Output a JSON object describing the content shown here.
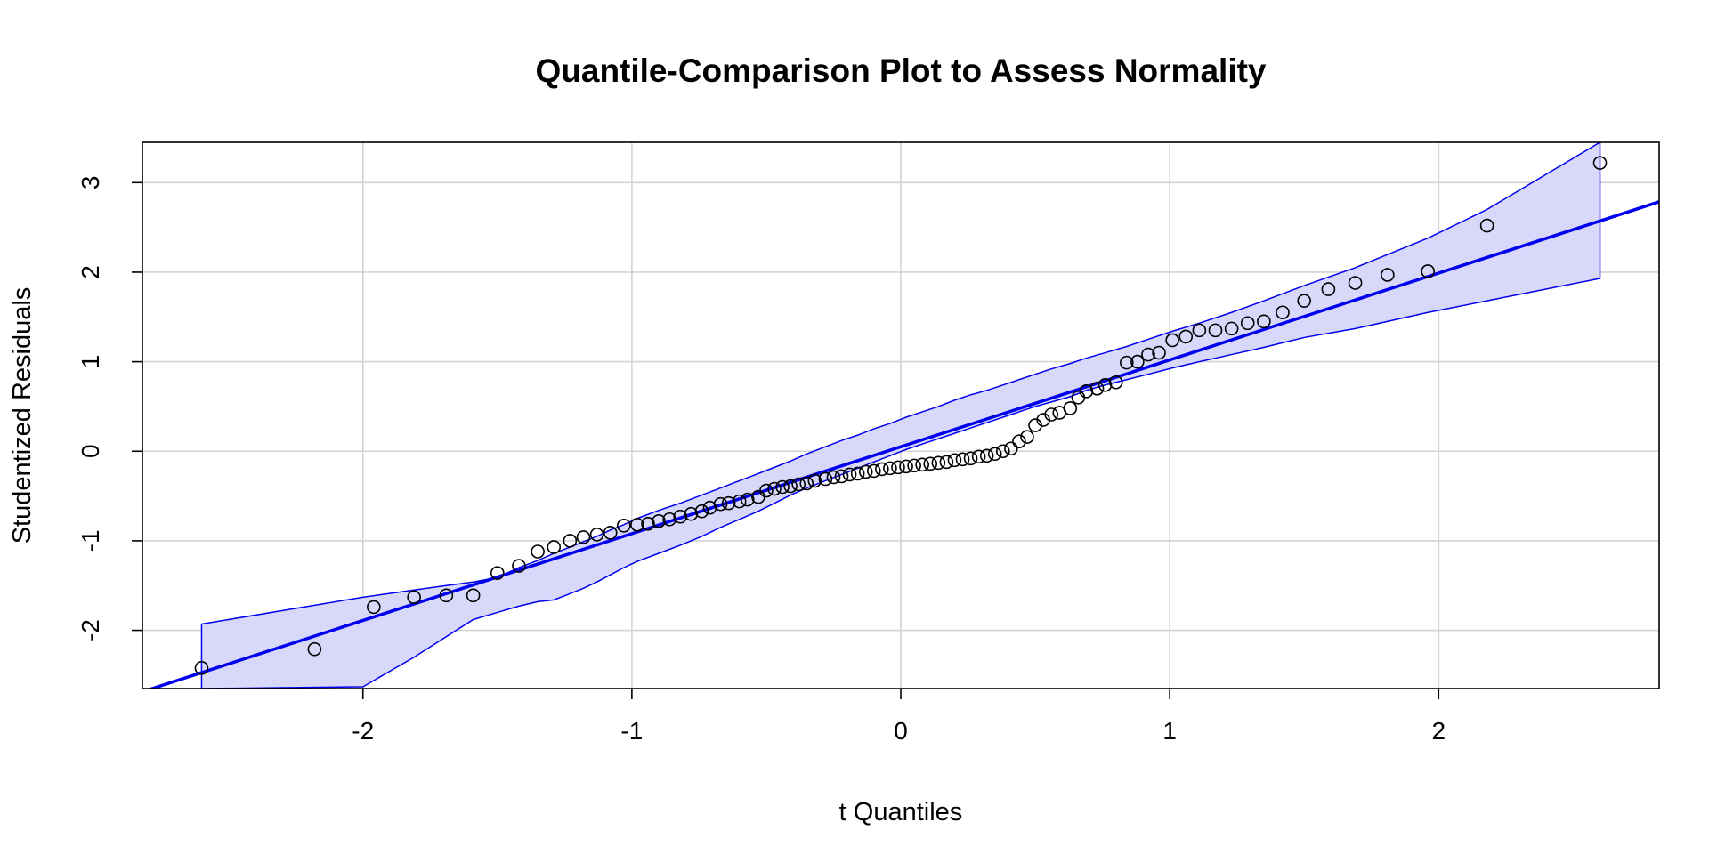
{
  "chart_data": {
    "type": "scatter",
    "title": "Quantile-Comparison Plot to Assess Normality",
    "xlabel": "t Quantiles",
    "ylabel": "Studentized Residuals",
    "xlim": [
      -2.82,
      2.82
    ],
    "ylim": [
      -2.65,
      3.45
    ],
    "xticks": [
      -2,
      -1,
      0,
      1,
      2
    ],
    "xtick_labels": [
      "-2",
      "-1",
      "0",
      "1",
      "2"
    ],
    "yticks": [
      -2,
      -1,
      0,
      1,
      2,
      3
    ],
    "ytick_labels": [
      "-2",
      "-1",
      "0",
      "1",
      "2",
      "3"
    ],
    "grid": true,
    "colors": {
      "line": "#0000ee",
      "band_fill": "#d8d8fa",
      "band_edge": "#0000ee",
      "points": "#000000",
      "grid": "#d3d3d3"
    },
    "reference_line": {
      "slope": 0.97,
      "intercept": 0.05
    },
    "points": {
      "x": [
        -2.6,
        -2.18,
        -1.96,
        -1.81,
        -1.69,
        -1.59,
        -1.5,
        -1.42,
        -1.35,
        -1.29,
        -1.23,
        -1.18,
        -1.13,
        -1.08,
        -1.03,
        -0.98,
        -0.94,
        -0.9,
        -0.86,
        -0.82,
        -0.78,
        -0.74,
        -0.71,
        -0.67,
        -0.64,
        -0.6,
        -0.57,
        -0.53,
        -0.5,
        -0.47,
        -0.44,
        -0.41,
        -0.38,
        -0.35,
        -0.32,
        -0.28,
        -0.25,
        -0.22,
        -0.19,
        -0.16,
        -0.13,
        -0.1,
        -0.07,
        -0.04,
        -0.01,
        0.02,
        0.05,
        0.08,
        0.11,
        0.14,
        0.17,
        0.2,
        0.23,
        0.26,
        0.29,
        0.32,
        0.35,
        0.38,
        0.41,
        0.44,
        0.47,
        0.5,
        0.53,
        0.56,
        0.59,
        0.63,
        0.66,
        0.69,
        0.73,
        0.76,
        0.8,
        0.84,
        0.88,
        0.92,
        0.96,
        1.01,
        1.06,
        1.11,
        1.17,
        1.23,
        1.29,
        1.35,
        1.42,
        1.5,
        1.59,
        1.69,
        1.81,
        1.96,
        2.18,
        2.6
      ],
      "y": [
        -2.42,
        -2.21,
        -1.74,
        -1.63,
        -1.61,
        -1.61,
        -1.36,
        -1.28,
        -1.12,
        -1.07,
        -1.0,
        -0.96,
        -0.93,
        -0.91,
        -0.83,
        -0.82,
        -0.81,
        -0.78,
        -0.76,
        -0.73,
        -0.7,
        -0.67,
        -0.63,
        -0.59,
        -0.58,
        -0.56,
        -0.54,
        -0.51,
        -0.44,
        -0.42,
        -0.4,
        -0.39,
        -0.37,
        -0.36,
        -0.33,
        -0.31,
        -0.29,
        -0.28,
        -0.26,
        -0.25,
        -0.23,
        -0.22,
        -0.2,
        -0.19,
        -0.18,
        -0.17,
        -0.16,
        -0.15,
        -0.14,
        -0.13,
        -0.12,
        -0.1,
        -0.09,
        -0.08,
        -0.06,
        -0.05,
        -0.03,
        0.0,
        0.03,
        0.11,
        0.16,
        0.29,
        0.35,
        0.41,
        0.43,
        0.48,
        0.6,
        0.67,
        0.7,
        0.74,
        0.77,
        0.99,
        1.0,
        1.08,
        1.1,
        1.24,
        1.28,
        1.35,
        1.35,
        1.37,
        1.43,
        1.45,
        1.55,
        1.68,
        1.81,
        1.88,
        1.97,
        2.01,
        2.52,
        3.22
      ]
    },
    "envelope": {
      "x": [
        -2.6,
        -2.0,
        -1.81,
        -1.69,
        -1.59,
        -1.5,
        -1.42,
        -1.35,
        -1.29,
        -1.23,
        -1.18,
        -1.13,
        -1.08,
        -1.03,
        -0.98,
        -0.9,
        -0.82,
        -0.74,
        -0.67,
        -0.6,
        -0.53,
        -0.47,
        -0.41,
        -0.35,
        -0.28,
        -0.22,
        -0.16,
        -0.1,
        -0.04,
        0.02,
        0.08,
        0.14,
        0.2,
        0.26,
        0.32,
        0.38,
        0.44,
        0.5,
        0.56,
        0.63,
        0.69,
        0.76,
        0.84,
        0.92,
        1.01,
        1.11,
        1.23,
        1.35,
        1.5,
        1.69,
        1.96,
        2.18,
        2.6
      ],
      "upper": [
        -1.93,
        -1.63,
        -1.55,
        -1.5,
        -1.46,
        -1.41,
        -1.3,
        -1.22,
        -1.14,
        -1.07,
        -1.01,
        -0.95,
        -0.88,
        -0.82,
        -0.75,
        -0.66,
        -0.58,
        -0.49,
        -0.41,
        -0.33,
        -0.25,
        -0.18,
        -0.11,
        -0.03,
        0.05,
        0.12,
        0.18,
        0.25,
        0.31,
        0.38,
        0.44,
        0.5,
        0.57,
        0.63,
        0.68,
        0.74,
        0.8,
        0.86,
        0.92,
        0.98,
        1.04,
        1.1,
        1.17,
        1.25,
        1.34,
        1.43,
        1.55,
        1.68,
        1.85,
        2.05,
        2.38,
        2.7,
        3.45
      ],
      "lower": [
        -2.65,
        -2.63,
        -2.3,
        -2.07,
        -1.88,
        -1.8,
        -1.73,
        -1.68,
        -1.66,
        -1.59,
        -1.53,
        -1.46,
        -1.38,
        -1.3,
        -1.23,
        -1.14,
        -1.05,
        -0.95,
        -0.85,
        -0.76,
        -0.67,
        -0.58,
        -0.49,
        -0.41,
        -0.33,
        -0.26,
        -0.19,
        -0.12,
        -0.05,
        0.02,
        0.08,
        0.14,
        0.2,
        0.26,
        0.32,
        0.38,
        0.44,
        0.5,
        0.55,
        0.61,
        0.68,
        0.74,
        0.8,
        0.86,
        0.93,
        1.0,
        1.08,
        1.16,
        1.27,
        1.37,
        1.55,
        1.68,
        1.93
      ]
    }
  }
}
